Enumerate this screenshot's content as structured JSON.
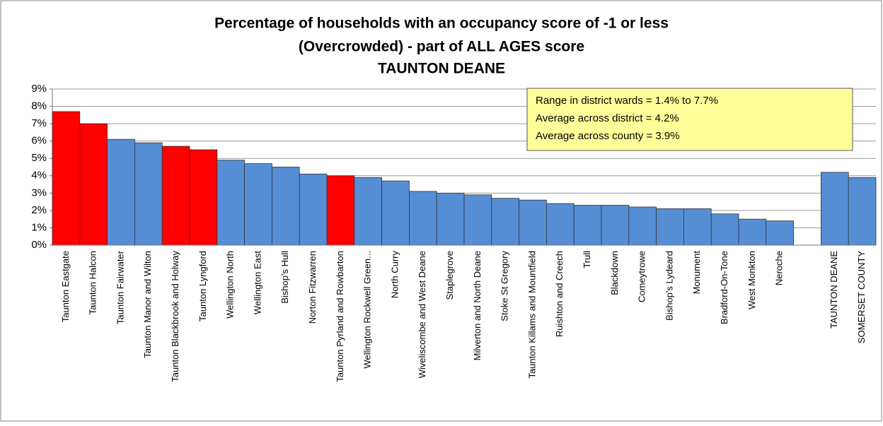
{
  "chart_data": {
    "type": "bar",
    "title": [
      "Percentage of households with an occupancy score of -1 or less",
      "(Overcrowded) - part of ALL AGES score",
      "TAUNTON DEANE"
    ],
    "categories": [
      "Taunton Eastgate",
      "Taunton Halcon",
      "Taunton Fairwater",
      "Taunton Manor and Wilton",
      "Taunton Blackbrook and Holway",
      "Taunton Lyngford",
      "Wellington North",
      "Wellington East",
      "Bishop's Hull",
      "Norton Fitzwarren",
      "Taunton Pyrland and Rowbarton",
      "Wellington Rockwell Green...",
      "North Curry",
      "Wiveliscombe and West Deane",
      "Staplegrove",
      "Milverton and North Deane",
      "Stoke St Gregory",
      "Taunton Killams and Mountfield",
      "Ruishton and Creech",
      "Trull",
      "Blackdown",
      "Comeytrowe",
      "Bishop's Lydeard",
      "Monument",
      "Bradford-On-Tone",
      "West Monkton",
      "Neroche",
      null,
      "TAUNTON DEANE",
      "SOMERSET COUNTY"
    ],
    "values": [
      7.7,
      7.0,
      6.1,
      5.9,
      5.7,
      5.5,
      4.9,
      4.7,
      4.5,
      4.1,
      4.0,
      3.9,
      3.7,
      3.1,
      3.0,
      2.9,
      2.7,
      2.6,
      2.4,
      2.3,
      2.3,
      2.2,
      2.1,
      2.1,
      1.8,
      1.5,
      1.4,
      null,
      4.2,
      3.9
    ],
    "colors": [
      "#ff0000",
      "#ff0000",
      "#558ed5",
      "#558ed5",
      "#ff0000",
      "#ff0000",
      "#558ed5",
      "#558ed5",
      "#558ed5",
      "#558ed5",
      "#ff0000",
      "#558ed5",
      "#558ed5",
      "#558ed5",
      "#558ed5",
      "#558ed5",
      "#558ed5",
      "#558ed5",
      "#558ed5",
      "#558ed5",
      "#558ed5",
      "#558ed5",
      "#558ed5",
      "#558ed5",
      "#558ed5",
      "#558ed5",
      "#558ed5",
      null,
      "#558ed5",
      "#558ed5"
    ],
    "ylim": [
      0,
      9
    ],
    "yticks": [
      {
        "value": 0,
        "label": "0%"
      },
      {
        "value": 1,
        "label": "1%"
      },
      {
        "value": 2,
        "label": "2%"
      },
      {
        "value": 3,
        "label": "3%"
      },
      {
        "value": 4,
        "label": "4%"
      },
      {
        "value": 5,
        "label": "5%"
      },
      {
        "value": 6,
        "label": "6%"
      },
      {
        "value": 7,
        "label": "7%"
      },
      {
        "value": 8,
        "label": "8%"
      },
      {
        "value": 9,
        "label": "9%"
      }
    ],
    "grid": true,
    "annotation": [
      "Range in district wards = 1.4% to 7.7%",
      "Average across district = 4.2%",
      "Average across county = 3.9%"
    ]
  }
}
